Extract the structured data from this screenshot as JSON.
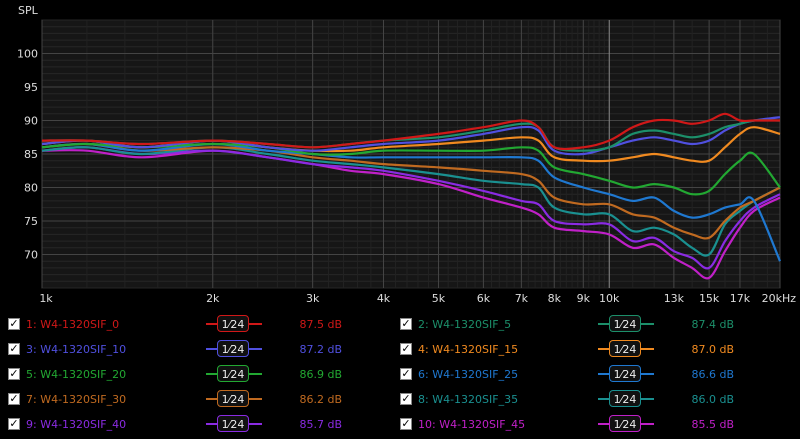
{
  "chart_data": {
    "type": "line",
    "ylabel": "SPL",
    "x_scale": "log",
    "xlim": [
      1000,
      20000
    ],
    "ylim": [
      65,
      105
    ],
    "y_ticks": [
      70,
      75,
      80,
      85,
      90,
      95,
      100
    ],
    "x_ticks": [
      {
        "v": 1000,
        "label": "1k"
      },
      {
        "v": 2000,
        "label": "2k"
      },
      {
        "v": 3000,
        "label": "3k"
      },
      {
        "v": 4000,
        "label": "4k"
      },
      {
        "v": 5000,
        "label": "5k"
      },
      {
        "v": 6000,
        "label": "6k"
      },
      {
        "v": 7000,
        "label": "7k"
      },
      {
        "v": 8000,
        "label": "8k"
      },
      {
        "v": 9000,
        "label": "9k"
      },
      {
        "v": 10000,
        "label": "10k"
      },
      {
        "v": 13000,
        "label": "13k"
      },
      {
        "v": 15000,
        "label": "15k"
      },
      {
        "v": 17000,
        "label": "17k"
      },
      {
        "v": 20000,
        "label": "20kHz"
      }
    ],
    "x": [
      1000,
      1200,
      1500,
      2000,
      2500,
      3000,
      3500,
      4000,
      5000,
      6000,
      7000,
      7500,
      8000,
      9000,
      10000,
      11000,
      12000,
      13000,
      14000,
      15000,
      16000,
      17000,
      18000,
      20000
    ],
    "series": [
      {
        "name": "1: W4-1320SIF_0",
        "color": "#d01818",
        "values": [
          87,
          87,
          86.5,
          87,
          86.5,
          86,
          86.5,
          87,
          88,
          89,
          90,
          89,
          86,
          86,
          87,
          89,
          90,
          90,
          89.5,
          90,
          91,
          90,
          90,
          90
        ]
      },
      {
        "name": "2: W4-1320SIF_5",
        "color": "#1c8f6a",
        "values": [
          87,
          87,
          86.5,
          87,
          86.5,
          86,
          86.5,
          87,
          87.5,
          88.5,
          89.5,
          89,
          86,
          85.5,
          86,
          88,
          88.5,
          88,
          87.5,
          88,
          89,
          89.5,
          90,
          90
        ]
      },
      {
        "name": "3: W4-1320SIF_10",
        "color": "#5050e0",
        "values": [
          86.5,
          87,
          86,
          87,
          86,
          85.5,
          86,
          86.5,
          87,
          88,
          89,
          88.5,
          85.5,
          85,
          86,
          87,
          87.5,
          87,
          86.5,
          87,
          88.5,
          89.5,
          90,
          90.5
        ]
      },
      {
        "name": "4: W4-1320SIF_15",
        "color": "#f08a20",
        "values": [
          86.5,
          87,
          86,
          87,
          86,
          85.5,
          85.5,
          86,
          86.5,
          87,
          87.5,
          87,
          84.5,
          84,
          84,
          84.5,
          85,
          84.5,
          84,
          84,
          86,
          88,
          89,
          88
        ]
      },
      {
        "name": "5: W4-1320SIF_20",
        "color": "#22a832",
        "values": [
          86,
          86.5,
          86,
          86.5,
          86,
          85,
          85,
          85.5,
          85.5,
          85.5,
          86,
          85.5,
          83,
          82,
          81,
          80,
          80.5,
          80,
          79,
          79.5,
          82,
          84,
          85,
          80
        ]
      },
      {
        "name": "6: W4-1320SIF_25",
        "color": "#1f78d0",
        "values": [
          86,
          86.5,
          85.5,
          86.5,
          85.5,
          85,
          84.5,
          84.5,
          84.5,
          84.5,
          84.5,
          84,
          81.5,
          80,
          79,
          78,
          78.5,
          76.5,
          75.5,
          76,
          77,
          77.5,
          78,
          69
        ]
      },
      {
        "name": "7: W4-1320SIF_30",
        "color": "#c06a20",
        "values": [
          86,
          86.5,
          85.5,
          86,
          85.5,
          84.5,
          84,
          83.5,
          83,
          82.5,
          82,
          81,
          78.5,
          77.5,
          77.5,
          76,
          75.5,
          74,
          73,
          72.5,
          75,
          77,
          78,
          80
        ]
      },
      {
        "name": "8: W4-1320SIF_35",
        "color": "#1a9090",
        "values": [
          85.5,
          86,
          85,
          86,
          85,
          84,
          83.5,
          83,
          82,
          81,
          80.5,
          80,
          77,
          76,
          76,
          73.5,
          74,
          73,
          71,
          70,
          74.5,
          76.5,
          78,
          80
        ]
      },
      {
        "name": "9: W4-1320SIF_40",
        "color": "#8a2be2",
        "values": [
          85.5,
          86,
          85,
          85.5,
          84.5,
          83.5,
          83,
          82.5,
          81,
          79.5,
          78,
          77.5,
          75,
          74.5,
          74.5,
          72,
          72.5,
          70.5,
          69.5,
          68,
          72,
          75,
          77,
          79
        ]
      },
      {
        "name": "10: W4-1320SIF_45",
        "color": "#c020c8",
        "values": [
          85.5,
          85.5,
          84.5,
          85.5,
          84.5,
          83.5,
          82.5,
          82,
          80.5,
          78.5,
          77,
          76,
          74,
          73.5,
          73,
          71,
          71.5,
          69.5,
          68,
          66.5,
          70.5,
          74,
          76.5,
          78.5
        ]
      }
    ]
  },
  "legend": [
    {
      "checked": "✓",
      "name": "1: W4-1320SIF_0",
      "smoothing": "1⁄24",
      "value": "87.5 dB",
      "color": "#d01818"
    },
    {
      "checked": "✓",
      "name": "2: W4-1320SIF_5",
      "smoothing": "1⁄24",
      "value": "87.4 dB",
      "color": "#1c8f6a"
    },
    {
      "checked": "✓",
      "name": "3: W4-1320SIF_10",
      "smoothing": "1⁄24",
      "value": "87.2 dB",
      "color": "#5050e0"
    },
    {
      "checked": "✓",
      "name": "4: W4-1320SIF_15",
      "smoothing": "1⁄24",
      "value": "87.0 dB",
      "color": "#f08a20"
    },
    {
      "checked": "✓",
      "name": "5: W4-1320SIF_20",
      "smoothing": "1⁄24",
      "value": "86.9 dB",
      "color": "#22a832"
    },
    {
      "checked": "✓",
      "name": "6: W4-1320SIF_25",
      "smoothing": "1⁄24",
      "value": "86.6 dB",
      "color": "#1f78d0"
    },
    {
      "checked": "✓",
      "name": "7: W4-1320SIF_30",
      "smoothing": "1⁄24",
      "value": "86.2 dB",
      "color": "#c06a20"
    },
    {
      "checked": "✓",
      "name": "8: W4-1320SIF_35",
      "smoothing": "1⁄24",
      "value": "86.0 dB",
      "color": "#1a9090"
    },
    {
      "checked": "✓",
      "name": "9: W4-1320SIF_40",
      "smoothing": "1⁄24",
      "value": "85.7 dB",
      "color": "#8a2be2"
    },
    {
      "checked": "✓",
      "name": "10: W4-1320SIF_45",
      "smoothing": "1⁄24",
      "value": "85.5 dB",
      "color": "#c020c8"
    }
  ]
}
